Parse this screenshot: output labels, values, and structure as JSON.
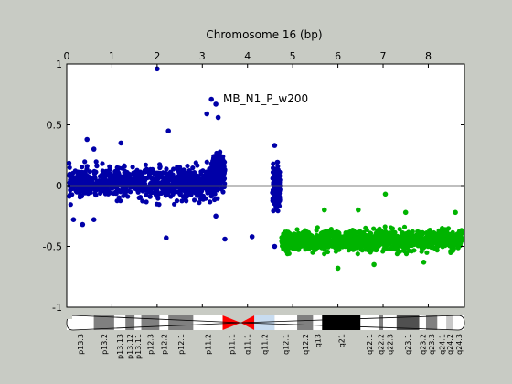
{
  "chart_data": {
    "type": "scatter",
    "title": "Chromosome 16 (bp)",
    "xlim": [
      0,
      8.8
    ],
    "ylim": [
      -1,
      1
    ],
    "x_axis_position": "top",
    "x_ticks": [
      0,
      1,
      2,
      3,
      4,
      5,
      6,
      7,
      8
    ],
    "y_ticks": [
      1,
      0.5,
      0,
      -0.5,
      -1
    ],
    "x_tick_labels": [
      "0",
      "1",
      "2",
      "3",
      "4",
      "5",
      "6",
      "7",
      "8"
    ],
    "y_tick_labels": [
      "1",
      "0.5",
      "0",
      "-0.5",
      "-1"
    ],
    "annotation": "MB_N1_P_w200",
    "reference_line_y": 0,
    "grid": false,
    "series": [
      {
        "color": "#0000a8",
        "clusters": [
          {
            "x_range": [
              0.05,
              3.35
            ],
            "y_mean": 0.02,
            "y_spread": 0.11,
            "count": 900
          },
          {
            "x_range": [
              3.2,
              3.5
            ],
            "y_mean": 0.12,
            "y_spread": 0.12,
            "count": 180
          },
          {
            "x_range": [
              4.55,
              4.72
            ],
            "y_mean": -0.02,
            "y_spread": 0.17,
            "count": 130
          }
        ],
        "outliers": [
          [
            2.0,
            0.96
          ],
          [
            3.2,
            0.71
          ],
          [
            3.3,
            0.67
          ],
          [
            3.1,
            0.59
          ],
          [
            3.35,
            0.56
          ],
          [
            2.25,
            0.45
          ],
          [
            0.45,
            0.38
          ],
          [
            1.2,
            0.35
          ],
          [
            0.6,
            0.3
          ],
          [
            0.15,
            -0.28
          ],
          [
            0.35,
            -0.32
          ],
          [
            0.6,
            -0.28
          ],
          [
            2.2,
            -0.43
          ],
          [
            3.5,
            -0.44
          ],
          [
            4.1,
            -0.42
          ],
          [
            4.6,
            0.33
          ],
          [
            4.6,
            -0.5
          ],
          [
            3.3,
            -0.25
          ]
        ]
      },
      {
        "color": "#00b400",
        "clusters": [
          {
            "x_range": [
              4.75,
              8.75
            ],
            "y_mean": -0.45,
            "y_spread": 0.07,
            "count": 1300
          }
        ],
        "outliers": [
          [
            7.05,
            -0.07
          ],
          [
            6.45,
            -0.2
          ],
          [
            7.5,
            -0.22
          ],
          [
            5.7,
            -0.2
          ],
          [
            6.0,
            -0.68
          ],
          [
            6.8,
            -0.65
          ],
          [
            7.9,
            -0.63
          ],
          [
            8.6,
            -0.22
          ]
        ]
      }
    ]
  },
  "ideogram": {
    "bands": [
      {
        "name": "p13.3",
        "start": 0.0,
        "end": 0.6,
        "stain": "gneg"
      },
      {
        "name": "p13.2",
        "start": 0.6,
        "end": 1.05,
        "stain": "gpos50"
      },
      {
        "name": "p13.13",
        "start": 1.05,
        "end": 1.3,
        "stain": "gneg"
      },
      {
        "name": "p13.12",
        "start": 1.3,
        "end": 1.5,
        "stain": "gpos50"
      },
      {
        "name": "p13.11",
        "start": 1.5,
        "end": 1.65,
        "stain": "gneg"
      },
      {
        "name": "p12.3",
        "start": 1.65,
        "end": 2.05,
        "stain": "gpos50"
      },
      {
        "name": "p12.2",
        "start": 2.05,
        "end": 2.25,
        "stain": "gneg"
      },
      {
        "name": "p12.1",
        "start": 2.25,
        "end": 2.8,
        "stain": "gpos50"
      },
      {
        "name": "p11.2",
        "start": 2.8,
        "end": 3.45,
        "stain": "gneg"
      },
      {
        "name": "p11.1",
        "start": 3.45,
        "end": 3.85,
        "stain": "acen-p"
      },
      {
        "name": "q11.1",
        "start": 3.85,
        "end": 4.15,
        "stain": "acen-q"
      },
      {
        "name": "q11.2",
        "start": 4.15,
        "end": 4.6,
        "stain": "gvar"
      },
      {
        "name": "q12.1",
        "start": 4.6,
        "end": 5.1,
        "stain": "gneg"
      },
      {
        "name": "q12.2",
        "start": 5.1,
        "end": 5.45,
        "stain": "gpos50"
      },
      {
        "name": "q13",
        "start": 5.45,
        "end": 5.65,
        "stain": "gneg"
      },
      {
        "name": "q21",
        "start": 5.65,
        "end": 6.5,
        "stain": "gpos100"
      },
      {
        "name": "q22.1",
        "start": 6.5,
        "end": 6.9,
        "stain": "gneg"
      },
      {
        "name": "q22.2",
        "start": 6.9,
        "end": 7.0,
        "stain": "gpos50"
      },
      {
        "name": "q22.3",
        "start": 7.0,
        "end": 7.3,
        "stain": "gneg"
      },
      {
        "name": "q23.1",
        "start": 7.3,
        "end": 7.8,
        "stain": "gpos75"
      },
      {
        "name": "q23.2",
        "start": 7.8,
        "end": 7.95,
        "stain": "gneg"
      },
      {
        "name": "q23.3",
        "start": 7.95,
        "end": 8.2,
        "stain": "gpos50"
      },
      {
        "name": "q24.1",
        "start": 8.2,
        "end": 8.4,
        "stain": "gneg"
      },
      {
        "name": "q24.2",
        "start": 8.4,
        "end": 8.55,
        "stain": "gpos25"
      },
      {
        "name": "q24.3",
        "start": 8.55,
        "end": 8.8,
        "stain": "gneg"
      }
    ],
    "stain_colors": {
      "gneg": "#ffffff",
      "gpos25": "#c8c8c8",
      "gpos50": "#808080",
      "gpos75": "#505050",
      "gpos100": "#000000",
      "gvar": "#c8dcf0",
      "acen-p": "#ff0000",
      "acen-q": "#ff0000"
    }
  }
}
